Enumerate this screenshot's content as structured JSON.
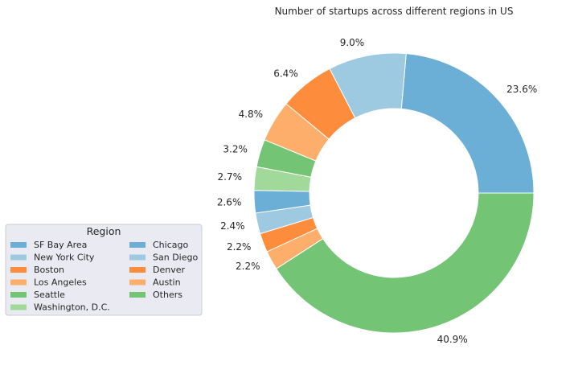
{
  "chart_data": {
    "type": "pie",
    "title": "Number of startups across different regions in US",
    "donut": true,
    "legend_title": "Region",
    "legend_position": "lower-left",
    "categories": [
      "SF Bay Area",
      "New York City",
      "Boston",
      "Los Angeles",
      "Seattle",
      "Washington, D.C.",
      "Chicago",
      "San Diego",
      "Denver",
      "Austin",
      "Others"
    ],
    "values": [
      23.6,
      9.0,
      6.4,
      4.8,
      3.2,
      2.7,
      2.6,
      2.4,
      2.2,
      2.2,
      40.9
    ],
    "labels": [
      "23.6%",
      "9.0%",
      "6.4%",
      "4.8%",
      "3.2%",
      "2.7%",
      "2.6%",
      "2.4%",
      "2.2%",
      "2.2%",
      "40.9%"
    ],
    "colors": [
      "#6baed6",
      "#9ecae1",
      "#fd8d3c",
      "#fdae6b",
      "#74c476",
      "#a1d99b",
      "#6baed6",
      "#9ecae1",
      "#fd8d3c",
      "#fdae6b",
      "#74c476"
    ]
  }
}
